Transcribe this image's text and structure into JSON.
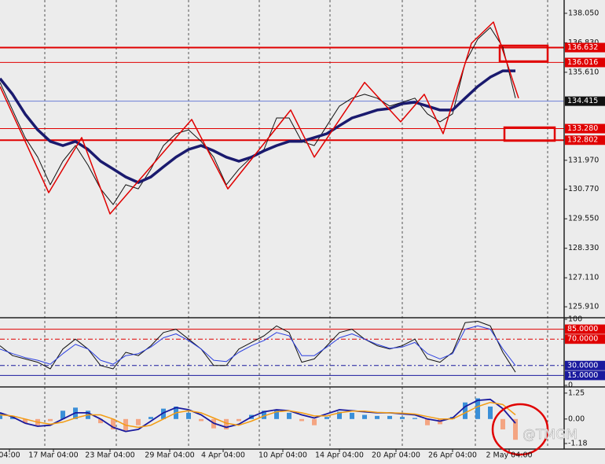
{
  "chart_data": [
    {
      "type": "line",
      "xlim": [
        0,
        180
      ],
      "ylim": [
        125.49,
        138.6
      ],
      "x": [
        0,
        4,
        8,
        12,
        16,
        20,
        24,
        28,
        32,
        36,
        40,
        44,
        48,
        52,
        56,
        60,
        64,
        68,
        72,
        76,
        80,
        84,
        88,
        92,
        96,
        100,
        104,
        108,
        112,
        116,
        120,
        124,
        128,
        132,
        136,
        140,
        144,
        148,
        152,
        156,
        160,
        164
      ],
      "series": [
        {
          "color": "#111111",
          "width": 1,
          "values": [
            135.19,
            134.05,
            132.91,
            132.1,
            130.96,
            131.93,
            132.58,
            131.77,
            130.79,
            130.14,
            130.96,
            130.79,
            131.6,
            132.58,
            133.07,
            133.23,
            132.75,
            132.1,
            130.96,
            131.6,
            132.1,
            132.42,
            133.72,
            133.72,
            132.75,
            132.58,
            133.4,
            134.21,
            134.54,
            134.7,
            134.54,
            134.21,
            134.37,
            134.54,
            133.89,
            133.56,
            133.89,
            136.0,
            136.98,
            137.46,
            136.65,
            134.54
          ]
        },
        {
          "color": "#1a1a6e",
          "width": 3.5,
          "values": [
            135.35,
            134.7,
            133.88,
            133.23,
            132.75,
            132.58,
            132.75,
            132.42,
            131.93,
            131.61,
            131.28,
            131.05,
            131.28,
            131.7,
            132.1,
            132.42,
            132.58,
            132.36,
            132.1,
            131.93,
            132.1,
            132.36,
            132.58,
            132.75,
            132.75,
            132.91,
            133.07,
            133.4,
            133.72,
            133.88,
            134.05,
            134.11,
            134.31,
            134.37,
            134.21,
            134.05,
            134.05,
            134.54,
            135.02,
            135.41,
            135.67,
            135.67
          ]
        },
        {
          "color": "#e00000",
          "width": 1.5,
          "x": [
            0,
            15.5,
            26,
            35,
            61,
            72.5,
            92.5,
            100,
            116,
            127.5,
            135,
            141,
            150,
            157,
            165
          ],
          "values": [
            135.02,
            130.63,
            132.91,
            129.75,
            133.66,
            130.79,
            134.05,
            132.1,
            135.19,
            133.56,
            134.7,
            133.07,
            136.81,
            137.69,
            134.54
          ]
        }
      ],
      "yticks": [
        {
          "value": 138.05,
          "label": "138.050"
        },
        {
          "value": 136.83,
          "label": "136.830"
        },
        {
          "value": 135.61,
          "label": "135.610"
        },
        {
          "value": 131.97,
          "label": "131.970"
        },
        {
          "value": 130.77,
          "label": "130.770"
        },
        {
          "value": 129.55,
          "label": "129.550"
        },
        {
          "value": 128.33,
          "label": "128.330"
        },
        {
          "value": 127.11,
          "label": "127.110"
        },
        {
          "value": 125.91,
          "label": "125.910"
        }
      ],
      "levels": [
        {
          "value": 136.632,
          "label": "136.632",
          "color": "#e00000",
          "width": 2,
          "label_bg": "#e00000"
        },
        {
          "value": 136.016,
          "label": "136.016",
          "color": "#e00000",
          "width": 1,
          "label_bg": "#e00000"
        },
        {
          "value": 134.415,
          "label": "134.415",
          "color": "#6a7fd6",
          "width": 1,
          "label_bg": "#111111"
        },
        {
          "value": 133.28,
          "label": "133.280",
          "color": "#e00000",
          "width": 1,
          "label_bg": "#e00000"
        },
        {
          "value": 132.802,
          "label": "132.802",
          "color": "#e00000",
          "width": 2,
          "label_bg": "#e00000"
        }
      ]
    },
    {
      "type": "line",
      "xlim": [
        0,
        180
      ],
      "ylim": [
        0,
        100
      ],
      "x": [
        0,
        4,
        8,
        12,
        16,
        20,
        24,
        28,
        32,
        36,
        40,
        44,
        48,
        52,
        56,
        60,
        64,
        68,
        72,
        76,
        80,
        84,
        88,
        92,
        96,
        100,
        104,
        108,
        112,
        116,
        120,
        124,
        128,
        132,
        136,
        140,
        144,
        148,
        152,
        156,
        160,
        164
      ],
      "series": [
        {
          "color": "#111111",
          "width": 1,
          "values": [
            60,
            45,
            40,
            35,
            25,
            55,
            70,
            55,
            30,
            25,
            50,
            45,
            60,
            80,
            85,
            70,
            55,
            30,
            30,
            55,
            65,
            75,
            90,
            80,
            35,
            40,
            60,
            80,
            85,
            70,
            60,
            55,
            60,
            70,
            40,
            35,
            50,
            95,
            97,
            90,
            50,
            20
          ]
        },
        {
          "color": "#2b3fe0",
          "width": 1,
          "values": [
            55,
            48,
            42,
            38,
            32,
            48,
            62,
            55,
            38,
            32,
            45,
            48,
            58,
            72,
            78,
            68,
            55,
            38,
            36,
            50,
            60,
            68,
            80,
            75,
            45,
            45,
            58,
            72,
            78,
            70,
            62,
            56,
            58,
            65,
            48,
            40,
            48,
            85,
            90,
            85,
            55,
            30
          ]
        }
      ],
      "yticks": [
        100,
        0
      ],
      "levels": [
        {
          "value": 85,
          "label": "85.0000",
          "color": "#e00000",
          "width": 1,
          "label_bg": "#e00000"
        },
        {
          "value": 70,
          "label": "70.0000",
          "color": "#e00000",
          "width": 1,
          "dash": true,
          "label_bg": "#e00000"
        },
        {
          "value": 30,
          "label": "30.0000",
          "color": "#1a1a9e",
          "width": 1,
          "dash": true,
          "label_bg": "#1a1a9e"
        },
        {
          "value": 15,
          "label": "15.0000",
          "color": "#1a1a9e",
          "width": 1,
          "label_bg": "#1a1a9e"
        }
      ]
    },
    {
      "type": "macd",
      "xlim": [
        0,
        180
      ],
      "ylim": [
        -1.41,
        1.51
      ],
      "x": [
        0,
        4,
        8,
        12,
        16,
        20,
        24,
        28,
        32,
        36,
        40,
        44,
        48,
        52,
        56,
        60,
        64,
        68,
        72,
        76,
        80,
        84,
        88,
        92,
        96,
        100,
        104,
        108,
        112,
        116,
        120,
        124,
        128,
        132,
        136,
        140,
        144,
        148,
        152,
        156,
        160,
        164
      ],
      "values": [
        0.3,
        0.15,
        -0.2,
        -0.3,
        -0.1,
        0.4,
        0.55,
        0.4,
        -0.2,
        -0.5,
        -0.55,
        -0.3,
        0.1,
        0.5,
        0.6,
        0.3,
        -0.1,
        -0.45,
        -0.5,
        -0.1,
        0.2,
        0.4,
        0.45,
        0.3,
        -0.1,
        -0.3,
        0.1,
        0.35,
        0.3,
        0.2,
        0.15,
        0.15,
        0.1,
        0.05,
        -0.3,
        -0.25,
        0.1,
        0.8,
        1.0,
        0.6,
        -0.5,
        -1.0
      ],
      "up_color": "#3a8fd8",
      "down_color": "#f4a582",
      "series": [
        {
          "color": "#1a1a9e",
          "width": 1.8,
          "values": [
            0.3,
            0.1,
            -0.2,
            -0.35,
            -0.3,
            0.0,
            0.3,
            0.3,
            0.0,
            -0.4,
            -0.6,
            -0.5,
            -0.1,
            0.3,
            0.55,
            0.45,
            0.2,
            -0.2,
            -0.4,
            -0.25,
            0.1,
            0.35,
            0.45,
            0.4,
            0.2,
            0.05,
            0.25,
            0.45,
            0.4,
            0.35,
            0.3,
            0.3,
            0.25,
            0.2,
            0.0,
            -0.1,
            0.05,
            0.6,
            0.9,
            0.95,
            0.5,
            -0.2
          ]
        },
        {
          "color": "#f39c12",
          "width": 1.5,
          "values": [
            0.2,
            0.15,
            0.0,
            -0.15,
            -0.25,
            -0.15,
            0.05,
            0.2,
            0.2,
            0.0,
            -0.3,
            -0.4,
            -0.3,
            0.0,
            0.3,
            0.4,
            0.3,
            0.05,
            -0.2,
            -0.3,
            -0.1,
            0.15,
            0.35,
            0.4,
            0.3,
            0.15,
            0.15,
            0.3,
            0.38,
            0.38,
            0.32,
            0.3,
            0.28,
            0.24,
            0.12,
            0.0,
            0.0,
            0.3,
            0.6,
            0.8,
            0.7,
            0.2
          ]
        }
      ],
      "yticks": [
        1.25,
        {
          "value": 0,
          "label": "0.00"
        },
        -1.18
      ],
      "xticks": [
        {
          "value": 3,
          "label": "04:00"
        },
        {
          "value": 17,
          "label": "17 Mar 04:00"
        },
        {
          "value": 35,
          "label": "23 Mar 04:00"
        },
        {
          "value": 54,
          "label": "29 Mar 04:00"
        },
        {
          "value": 71,
          "label": "4 Apr 04:00"
        },
        {
          "value": 90,
          "label": "10 Apr 04:00"
        },
        {
          "value": 108,
          "label": "14 Apr 04:00"
        },
        {
          "value": 126,
          "label": "20 Apr 04:00"
        },
        {
          "value": 144,
          "label": "26 Apr 04:00"
        },
        {
          "value": 162,
          "label": "2 May 04:00"
        }
      ]
    }
  ],
  "watermark": "@TMGM"
}
